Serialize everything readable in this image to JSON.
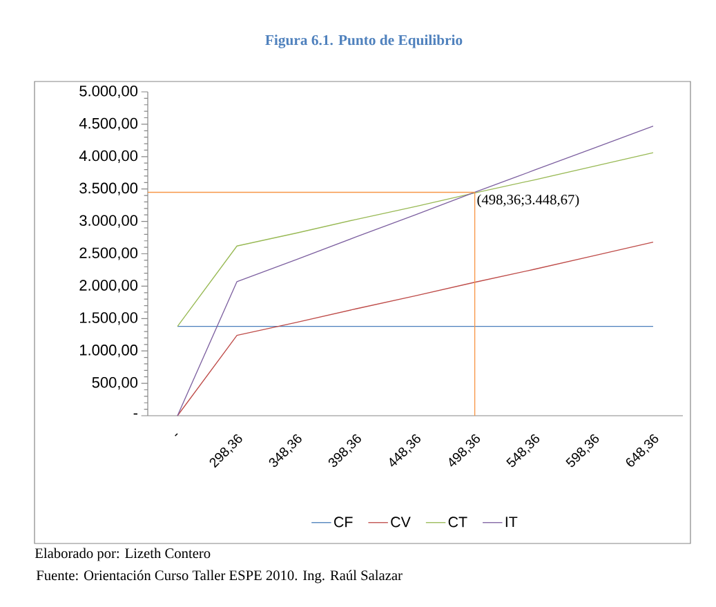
{
  "chart_data": {
    "type": "line",
    "title": "Figura 6.1. Punto de Equilibrio",
    "categories": [
      "-",
      "298,36",
      "348,36",
      "398,36",
      "448,36",
      "498,36",
      "548,36",
      "598,36",
      "648,36"
    ],
    "series": [
      {
        "name": "CF",
        "color": "#4a7ebb",
        "values": [
          1380,
          1380,
          1380,
          1380,
          1380,
          1380,
          1380,
          1380,
          1380
        ]
      },
      {
        "name": "CV",
        "color": "#be4b48",
        "values": [
          0,
          1240,
          1440,
          1650,
          1850,
          2060,
          2260,
          2470,
          2680
        ]
      },
      {
        "name": "CT",
        "color": "#98b954",
        "values": [
          1380,
          2620,
          2820,
          3030,
          3230,
          3440,
          3640,
          3850,
          4060
        ]
      },
      {
        "name": "IT",
        "color": "#7d60a0",
        "values": [
          0,
          2070,
          2410,
          2760,
          3100,
          3450,
          3790,
          4130,
          4470
        ]
      }
    ],
    "ylim": [
      0,
      5000
    ],
    "yticks": [
      {
        "value": 0,
        "label": "-"
      },
      {
        "value": 500,
        "label": "500,00"
      },
      {
        "value": 1000,
        "label": "1.000,00"
      },
      {
        "value": 1500,
        "label": "1.500,00"
      },
      {
        "value": 2000,
        "label": "2.000,00"
      },
      {
        "value": 2500,
        "label": "2.500,00"
      },
      {
        "value": 3000,
        "label": "3.000,00"
      },
      {
        "value": 3500,
        "label": "3.500,00"
      },
      {
        "value": 4000,
        "label": "4.000,00"
      },
      {
        "value": 4500,
        "label": "4.500,00"
      },
      {
        "value": 5000,
        "label": "5.000,00"
      }
    ],
    "ref_lines": [
      {
        "axis": "y",
        "value": 3448.67,
        "color": "#f79646"
      },
      {
        "axis": "x",
        "value": "498,36",
        "color": "#f79646"
      }
    ],
    "annotations": [
      {
        "text": "(498,36;3.448,67)",
        "x": "498,36",
        "y": 3448.67
      },
      "Elaborado por: Lizeth Contero",
      "Fuente: Orientación Curso Taller ESPE 2010. Ing. Raúl Salazar"
    ],
    "legend": "bottom",
    "marker": "none",
    "line_style": "solid",
    "grid": false
  }
}
